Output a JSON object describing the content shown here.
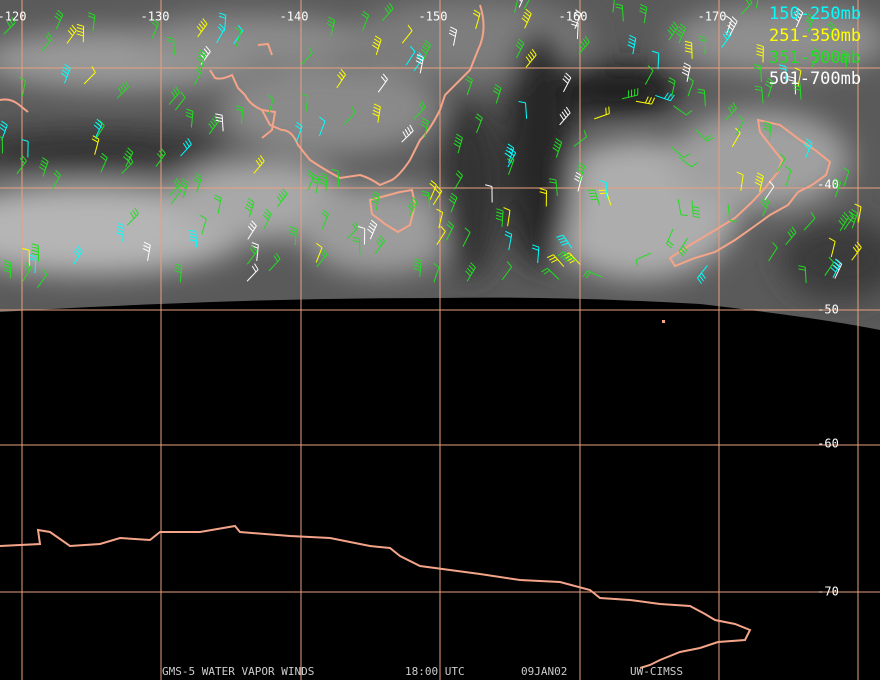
{
  "map": {
    "longitude_labels": [
      "-120",
      "-130",
      "-140",
      "-150",
      "-160",
      "-170"
    ],
    "latitude_labels": [
      "-40",
      "-50",
      "-60",
      "-70"
    ],
    "legend": [
      {
        "label": "150-250mb",
        "color": "#00ffff"
      },
      {
        "label": "251-350mb",
        "color": "#ffff00"
      },
      {
        "label": "351-500mb",
        "color": "#22dd22"
      },
      {
        "label": "501-700mb",
        "color": "#ffffff"
      }
    ],
    "footer": [
      "GMS-5 WATER VAPOR WINDS",
      "18:00 UTC",
      "09JAN02",
      "UW-CIMSS"
    ]
  }
}
